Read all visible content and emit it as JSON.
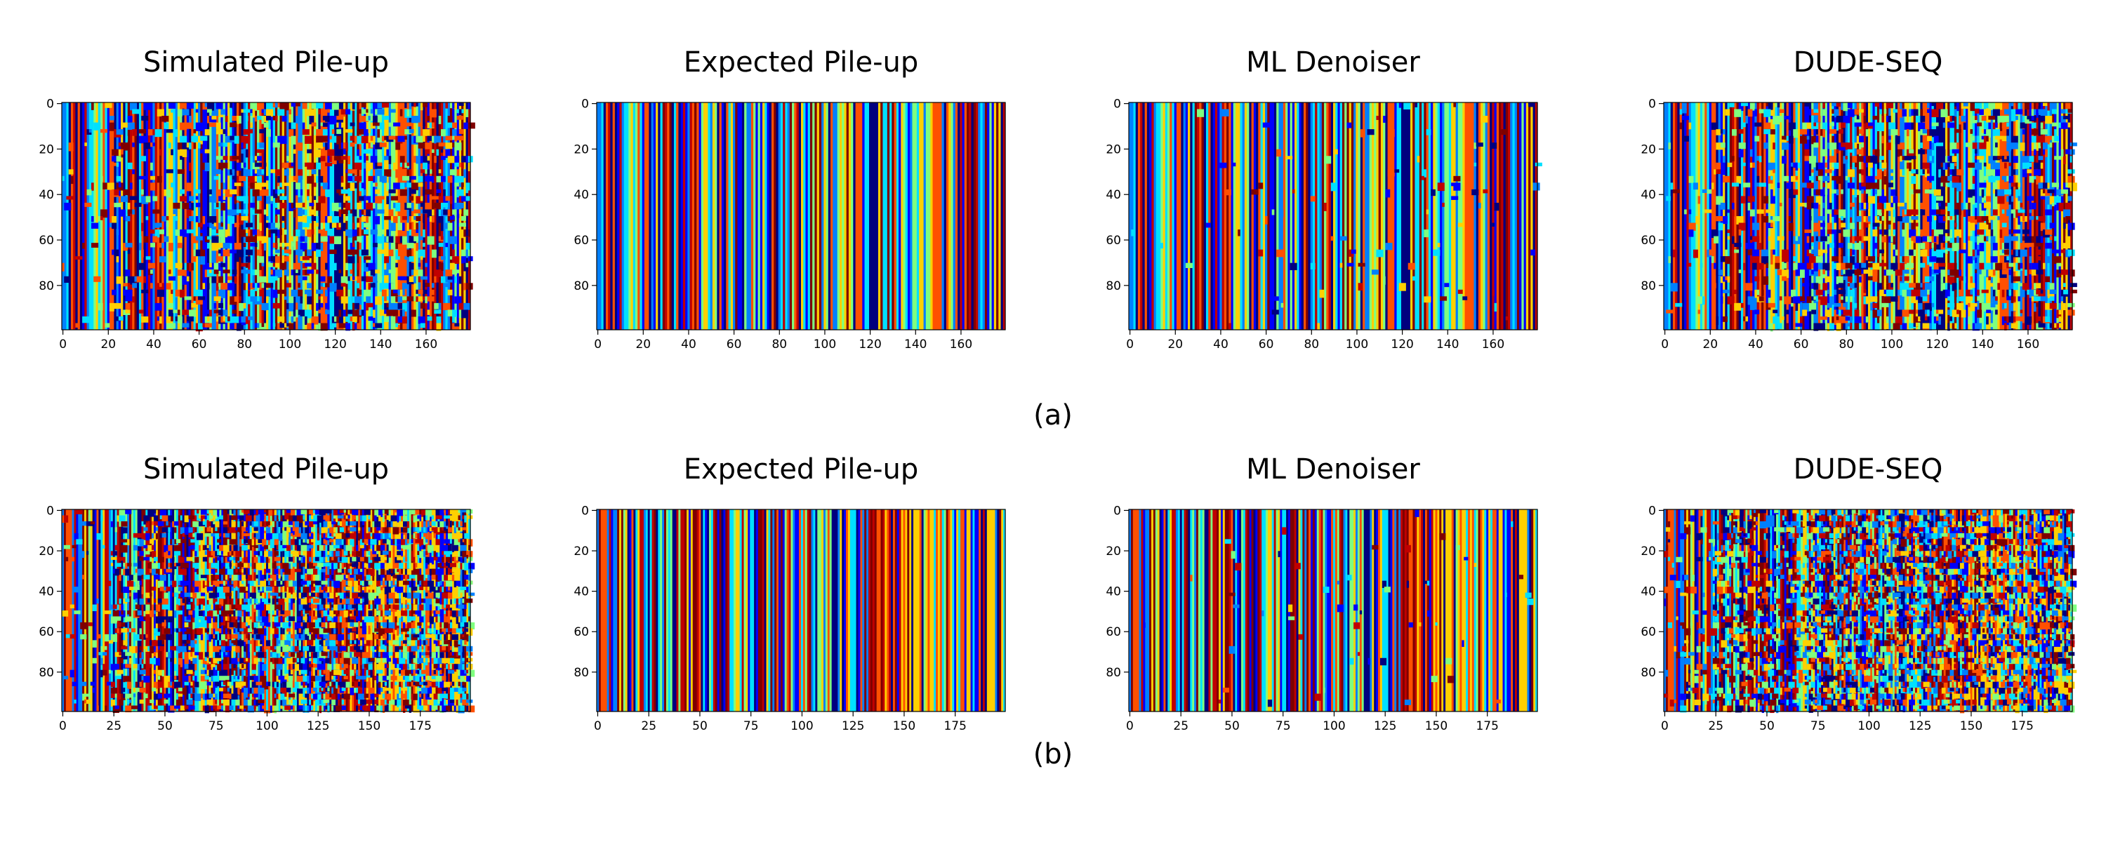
{
  "chart_data": [
    {
      "type": "heatmap",
      "row": "a",
      "title": "Simulated Pile-up",
      "n_cols": 180,
      "n_rows": 100,
      "noise": 0.25,
      "seed": 11,
      "x_ticks": [
        0,
        20,
        40,
        60,
        80,
        100,
        120,
        140,
        160
      ],
      "y_ticks": [
        0,
        20,
        40,
        60,
        80
      ],
      "colormap": "jet"
    },
    {
      "type": "heatmap",
      "row": "a",
      "title": "Expected Pile-up",
      "n_cols": 180,
      "n_rows": 100,
      "noise": 0.0,
      "seed": 11,
      "x_ticks": [
        0,
        20,
        40,
        60,
        80,
        100,
        120,
        140,
        160
      ],
      "y_ticks": [
        0,
        20,
        40,
        60,
        80
      ],
      "colormap": "jet"
    },
    {
      "type": "heatmap",
      "row": "a",
      "title": "ML Denoiser",
      "n_cols": 180,
      "n_rows": 100,
      "noise": 0.02,
      "seed": 11,
      "x_ticks": [
        0,
        20,
        40,
        60,
        80,
        100,
        120,
        140,
        160
      ],
      "y_ticks": [
        0,
        20,
        40,
        60,
        80
      ],
      "colormap": "jet"
    },
    {
      "type": "heatmap",
      "row": "a",
      "title": "DUDE-SEQ",
      "n_cols": 180,
      "n_rows": 100,
      "noise": 0.25,
      "seed": 11,
      "x_ticks": [
        0,
        20,
        40,
        60,
        80,
        100,
        120,
        140,
        160
      ],
      "y_ticks": [
        0,
        20,
        40,
        60,
        80
      ],
      "colormap": "jet"
    },
    {
      "type": "heatmap",
      "row": "b",
      "title": "Simulated Pile-up",
      "n_cols": 200,
      "n_rows": 100,
      "noise": 0.45,
      "seed": 29,
      "x_ticks": [
        0,
        25,
        50,
        75,
        100,
        125,
        150,
        175
      ],
      "y_ticks": [
        0,
        20,
        40,
        60,
        80
      ],
      "colormap": "jet"
    },
    {
      "type": "heatmap",
      "row": "b",
      "title": "Expected Pile-up",
      "n_cols": 200,
      "n_rows": 100,
      "noise": 0.0,
      "seed": 29,
      "x_ticks": [
        0,
        25,
        50,
        75,
        100,
        125,
        150,
        175
      ],
      "y_ticks": [
        0,
        20,
        40,
        60,
        80
      ],
      "colormap": "jet"
    },
    {
      "type": "heatmap",
      "row": "b",
      "title": "ML Denoiser",
      "n_cols": 200,
      "n_rows": 100,
      "noise": 0.01,
      "seed": 29,
      "x_ticks": [
        0,
        25,
        50,
        75,
        100,
        125,
        150,
        175
      ],
      "y_ticks": [
        0,
        20,
        40,
        60,
        80
      ],
      "colormap": "jet"
    },
    {
      "type": "heatmap",
      "row": "b",
      "title": "DUDE-SEQ",
      "n_cols": 200,
      "n_rows": 100,
      "noise": 0.45,
      "seed": 29,
      "x_ticks": [
        0,
        25,
        50,
        75,
        100,
        125,
        150,
        175
      ],
      "y_ticks": [
        0,
        20,
        40,
        60,
        80
      ],
      "colormap": "jet"
    }
  ],
  "row_labels": {
    "a": "(a)",
    "b": "(b)"
  },
  "colors": [
    "#00007f",
    "#0000ff",
    "#0080ff",
    "#00e0ff",
    "#7fff7f",
    "#ffd000",
    "#ff5000",
    "#c00000",
    "#7f0000"
  ]
}
